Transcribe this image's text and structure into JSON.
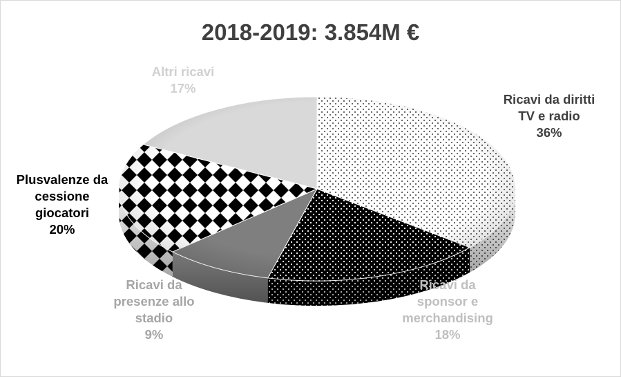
{
  "chart_data": {
    "type": "pie",
    "title": "2018-2019: 3.854M €",
    "slices": [
      {
        "lines": [
          "Ricavi da diritti",
          "TV e radio"
        ],
        "pct_label": "36%",
        "value": 36,
        "pattern": "sparse-dots",
        "label_color": "#404040"
      },
      {
        "lines": [
          "Ricavi da",
          "sponsor e",
          "merchandising"
        ],
        "pct_label": "18%",
        "value": 18,
        "pattern": "dense-dots",
        "label_color": "#bfbfbf"
      },
      {
        "lines": [
          "Ricavi da",
          "presenze allo",
          "stadio"
        ],
        "pct_label": "9%",
        "value": 9,
        "pattern": "solid-gray",
        "label_color": "#a6a6a6"
      },
      {
        "lines": [
          "Plusvalenze da",
          "cessione",
          "giocatori"
        ],
        "pct_label": "20%",
        "value": 20,
        "pattern": "diamonds",
        "label_color": "#000000"
      },
      {
        "lines": [
          "Altri ricavi"
        ],
        "pct_label": "17%",
        "value": 17,
        "pattern": "light-gray",
        "label_color": "#d0d0d0"
      }
    ]
  }
}
